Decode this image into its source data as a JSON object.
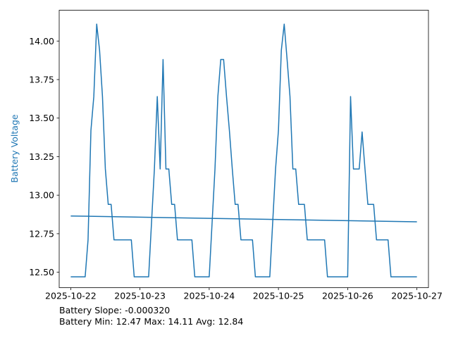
{
  "chart_data": {
    "type": "line",
    "title": "",
    "xlabel": "",
    "ylabel": "Battery Voltage",
    "ylim": [
      12.4,
      14.2
    ],
    "xlim": [
      "2025-10-21 20:00",
      "2025-10-27 04:00"
    ],
    "x_ticks": [
      "2025-10-22",
      "2025-10-23",
      "2025-10-24",
      "2025-10-25",
      "2025-10-26",
      "2025-10-27"
    ],
    "y_ticks": [
      "12.50",
      "12.75",
      "13.00",
      "13.25",
      "13.50",
      "13.75",
      "14.00"
    ],
    "grid": false,
    "colors": {
      "series": "#1f77b4",
      "ylabel": "#1f77b4",
      "axis": "#000000"
    },
    "series": [
      {
        "points": [
          [
            "2025-10-22 00:00",
            12.47
          ],
          [
            "2025-10-22 05:00",
            12.47
          ],
          [
            "2025-10-22 06:00",
            12.71
          ],
          [
            "2025-10-22 07:00",
            13.42
          ],
          [
            "2025-10-22 08:00",
            13.64
          ],
          [
            "2025-10-22 09:00",
            14.11
          ],
          [
            "2025-10-22 10:00",
            13.94
          ],
          [
            "2025-10-22 11:00",
            13.64
          ],
          [
            "2025-10-22 12:00",
            13.17
          ],
          [
            "2025-10-22 13:00",
            12.94
          ],
          [
            "2025-10-22 14:00",
            12.94
          ],
          [
            "2025-10-22 15:00",
            12.71
          ],
          [
            "2025-10-22 21:00",
            12.71
          ],
          [
            "2025-10-22 22:00",
            12.47
          ],
          [
            "2025-10-23 03:00",
            12.47
          ],
          [
            "2025-10-23 05:00",
            13.17
          ],
          [
            "2025-10-23 06:00",
            13.64
          ],
          [
            "2025-10-23 07:00",
            13.17
          ],
          [
            "2025-10-23 08:00",
            13.88
          ],
          [
            "2025-10-23 09:00",
            13.17
          ],
          [
            "2025-10-23 10:00",
            13.17
          ],
          [
            "2025-10-23 11:00",
            12.94
          ],
          [
            "2025-10-23 12:00",
            12.94
          ],
          [
            "2025-10-23 13:00",
            12.71
          ],
          [
            "2025-10-23 18:00",
            12.71
          ],
          [
            "2025-10-23 19:00",
            12.47
          ],
          [
            "2025-10-24 00:00",
            12.47
          ],
          [
            "2025-10-24 02:00",
            13.17
          ],
          [
            "2025-10-24 03:00",
            13.64
          ],
          [
            "2025-10-24 04:00",
            13.88
          ],
          [
            "2025-10-24 05:00",
            13.88
          ],
          [
            "2025-10-24 06:00",
            13.64
          ],
          [
            "2025-10-24 07:00",
            13.42
          ],
          [
            "2025-10-24 08:00",
            13.17
          ],
          [
            "2025-10-24 09:00",
            12.94
          ],
          [
            "2025-10-24 10:00",
            12.94
          ],
          [
            "2025-10-24 11:00",
            12.71
          ],
          [
            "2025-10-24 15:00",
            12.71
          ],
          [
            "2025-10-24 16:00",
            12.47
          ],
          [
            "2025-10-24 21:00",
            12.47
          ],
          [
            "2025-10-24 23:00",
            13.17
          ],
          [
            "2025-10-25 00:00",
            13.42
          ],
          [
            "2025-10-25 01:00",
            13.94
          ],
          [
            "2025-10-25 02:00",
            14.11
          ],
          [
            "2025-10-25 03:00",
            13.88
          ],
          [
            "2025-10-25 04:00",
            13.64
          ],
          [
            "2025-10-25 05:00",
            13.17
          ],
          [
            "2025-10-25 06:00",
            13.17
          ],
          [
            "2025-10-25 07:00",
            12.94
          ],
          [
            "2025-10-25 08:00",
            12.94
          ],
          [
            "2025-10-25 09:00",
            12.94
          ],
          [
            "2025-10-25 10:00",
            12.71
          ],
          [
            "2025-10-25 16:00",
            12.71
          ],
          [
            "2025-10-25 17:00",
            12.47
          ],
          [
            "2025-10-26 00:00",
            12.47
          ],
          [
            "2025-10-26 01:00",
            13.64
          ],
          [
            "2025-10-26 02:00",
            13.17
          ],
          [
            "2025-10-26 04:00",
            13.17
          ],
          [
            "2025-10-26 05:00",
            13.41
          ],
          [
            "2025-10-26 06:00",
            13.17
          ],
          [
            "2025-10-26 07:00",
            12.94
          ],
          [
            "2025-10-26 09:00",
            12.94
          ],
          [
            "2025-10-26 10:00",
            12.71
          ],
          [
            "2025-10-26 14:00",
            12.71
          ],
          [
            "2025-10-26 15:00",
            12.47
          ],
          [
            "2025-10-27 00:00",
            12.47
          ]
        ]
      },
      {
        "points": [
          [
            "2025-10-22 00:00",
            12.865
          ],
          [
            "2025-10-27 00:00",
            12.827
          ]
        ]
      }
    ],
    "annotations": [
      "Battery Slope: -0.000320",
      "Battery Min: 12.47 Max: 14.11 Avg: 12.84"
    ]
  }
}
